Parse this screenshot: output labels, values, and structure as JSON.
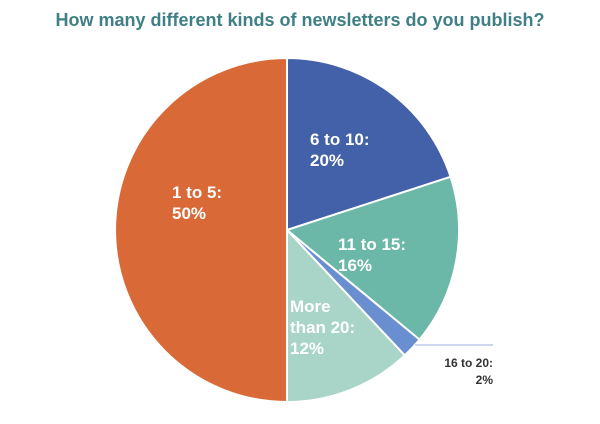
{
  "chart_data": {
    "type": "pie",
    "title": "How many different kinds of newsletters do you publish?",
    "slices": [
      {
        "label": "6 to 10:",
        "pct": "20%",
        "value": 20,
        "color": "#4361a8"
      },
      {
        "label": "11 to 15:",
        "pct": "16%",
        "value": 16,
        "color": "#6bb8a8"
      },
      {
        "label": "16 to 20:",
        "pct": "2%",
        "value": 2,
        "color": "#6a8fd0"
      },
      {
        "label": "More than 20:",
        "pct": "12%",
        "value": 12,
        "color": "#a8d5c8"
      },
      {
        "label": "1 to 5:",
        "pct": "50%",
        "value": 50,
        "color": "#d96a38"
      }
    ],
    "start": "top",
    "direction": "clockwise"
  }
}
